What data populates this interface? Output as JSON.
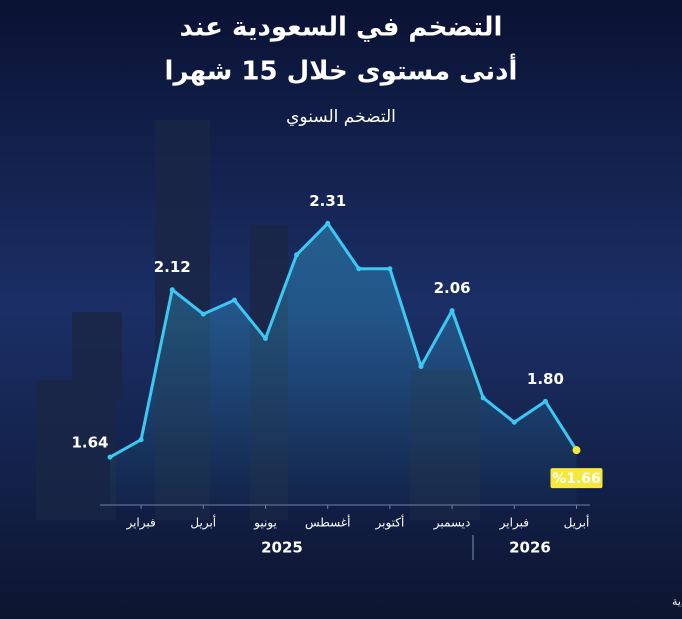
{
  "chart_data": {
    "type": "line",
    "title": [
      "التضخم في السعودية عند",
      "أدنى مستوى خلال 15 شهرا"
    ],
    "subtitle": "التضخم السنوي",
    "categories": [
      null,
      "فبراير",
      null,
      "أبريل",
      null,
      "يونيو",
      null,
      "أغسطس",
      null,
      "أكتوبر",
      null,
      "ديسمبر",
      null,
      "فبراير",
      null,
      "أبريل"
    ],
    "year_labels": [
      "2025",
      "2026"
    ],
    "series": [
      {
        "name": "التضخم السنوي",
        "color": "#3cc8f2",
        "values": [
          1.64,
          1.69,
          2.12,
          2.05,
          2.09,
          1.98,
          2.22,
          2.31,
          2.18,
          2.18,
          1.9,
          2.06,
          1.81,
          1.74,
          1.8,
          1.66
        ],
        "value_labels": [
          "1.64",
          null,
          "2.12",
          null,
          null,
          null,
          null,
          "2.31",
          null,
          null,
          null,
          "2.06",
          null,
          null,
          "1.80",
          "%1.66"
        ]
      }
    ],
    "ylim": [
      1.5,
      2.4
    ],
    "source": "المصدر: بيانات الهيئة العامة للإحصاء السعودية"
  }
}
